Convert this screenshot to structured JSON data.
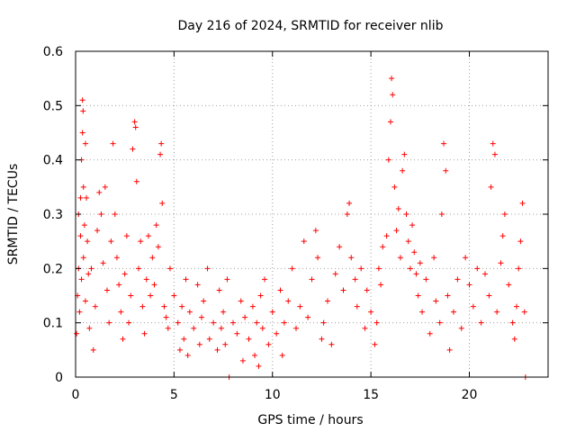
{
  "chart_data": {
    "type": "scatter",
    "title": "Day 216 of 2024, SRMTID for receiver nlib",
    "xlabel": "GPS time / hours",
    "ylabel": "SRMTID / TECUs",
    "xlim": [
      0,
      24
    ],
    "ylim": [
      0,
      0.6
    ],
    "x_ticks": [
      0,
      5,
      10,
      15,
      20
    ],
    "x_tick_labels": [
      "0",
      "5",
      "10",
      "15",
      "20"
    ],
    "y_ticks": [
      0,
      0.1,
      0.2,
      0.3,
      0.4,
      0.5,
      0.6
    ],
    "y_tick_labels": [
      "0",
      "0.1",
      "0.2",
      "0.3",
      "0.4",
      "0.5",
      "0.6"
    ],
    "grid": true,
    "marker": "+",
    "series": [
      {
        "name": "SRMTID",
        "color": "#ff0000",
        "points": [
          [
            0.05,
            0.08
          ],
          [
            0.1,
            0.15
          ],
          [
            0.15,
            0.2
          ],
          [
            0.15,
            0.3
          ],
          [
            0.2,
            0.12
          ],
          [
            0.25,
            0.26
          ],
          [
            0.25,
            0.33
          ],
          [
            0.3,
            0.18
          ],
          [
            0.3,
            0.4
          ],
          [
            0.35,
            0.45
          ],
          [
            0.35,
            0.51
          ],
          [
            0.38,
            0.49
          ],
          [
            0.4,
            0.35
          ],
          [
            0.4,
            0.22
          ],
          [
            0.45,
            0.28
          ],
          [
            0.5,
            0.43
          ],
          [
            0.5,
            0.14
          ],
          [
            0.55,
            0.33
          ],
          [
            0.6,
            0.25
          ],
          [
            0.65,
            0.19
          ],
          [
            0.7,
            0.09
          ],
          [
            0.8,
            0.2
          ],
          [
            0.9,
            0.05
          ],
          [
            1.0,
            0.13
          ],
          [
            1.1,
            0.27
          ],
          [
            1.2,
            0.34
          ],
          [
            1.3,
            0.3
          ],
          [
            1.4,
            0.21
          ],
          [
            1.5,
            0.35
          ],
          [
            1.6,
            0.16
          ],
          [
            1.7,
            0.1
          ],
          [
            1.8,
            0.25
          ],
          [
            1.9,
            0.43
          ],
          [
            2.0,
            0.3
          ],
          [
            2.1,
            0.22
          ],
          [
            2.2,
            0.17
          ],
          [
            2.3,
            0.12
          ],
          [
            2.4,
            0.07
          ],
          [
            2.5,
            0.19
          ],
          [
            2.6,
            0.26
          ],
          [
            2.7,
            0.1
          ],
          [
            2.8,
            0.15
          ],
          [
            2.9,
            0.42
          ],
          [
            3.0,
            0.47
          ],
          [
            3.05,
            0.46
          ],
          [
            3.1,
            0.36
          ],
          [
            3.2,
            0.2
          ],
          [
            3.3,
            0.25
          ],
          [
            3.4,
            0.13
          ],
          [
            3.5,
            0.08
          ],
          [
            3.6,
            0.18
          ],
          [
            3.7,
            0.26
          ],
          [
            3.8,
            0.15
          ],
          [
            3.9,
            0.22
          ],
          [
            4.0,
            0.17
          ],
          [
            4.1,
            0.28
          ],
          [
            4.2,
            0.24
          ],
          [
            4.3,
            0.41
          ],
          [
            4.35,
            0.43
          ],
          [
            4.4,
            0.32
          ],
          [
            4.5,
            0.13
          ],
          [
            4.6,
            0.11
          ],
          [
            4.7,
            0.09
          ],
          [
            4.8,
            0.2
          ],
          [
            5.0,
            0.15
          ],
          [
            5.2,
            0.1
          ],
          [
            5.3,
            0.05
          ],
          [
            5.4,
            0.13
          ],
          [
            5.5,
            0.07
          ],
          [
            5.6,
            0.18
          ],
          [
            5.7,
            0.04
          ],
          [
            5.8,
            0.12
          ],
          [
            6.0,
            0.09
          ],
          [
            6.2,
            0.17
          ],
          [
            6.3,
            0.06
          ],
          [
            6.4,
            0.11
          ],
          [
            6.5,
            0.14
          ],
          [
            6.7,
            0.2
          ],
          [
            6.8,
            0.07
          ],
          [
            7.0,
            0.1
          ],
          [
            7.2,
            0.05
          ],
          [
            7.3,
            0.16
          ],
          [
            7.4,
            0.09
          ],
          [
            7.5,
            0.12
          ],
          [
            7.6,
            0.06
          ],
          [
            7.7,
            0.18
          ],
          [
            7.8,
            0.0
          ],
          [
            8.0,
            0.1
          ],
          [
            8.2,
            0.08
          ],
          [
            8.4,
            0.14
          ],
          [
            8.5,
            0.03
          ],
          [
            8.6,
            0.11
          ],
          [
            8.8,
            0.07
          ],
          [
            9.0,
            0.13
          ],
          [
            9.1,
            0.04
          ],
          [
            9.2,
            0.1
          ],
          [
            9.3,
            0.02
          ],
          [
            9.4,
            0.15
          ],
          [
            9.5,
            0.09
          ],
          [
            9.6,
            0.18
          ],
          [
            9.8,
            0.06
          ],
          [
            10.0,
            0.12
          ],
          [
            10.2,
            0.08
          ],
          [
            10.4,
            0.16
          ],
          [
            10.5,
            0.04
          ],
          [
            10.6,
            0.1
          ],
          [
            10.8,
            0.14
          ],
          [
            11.0,
            0.2
          ],
          [
            11.2,
            0.09
          ],
          [
            11.4,
            0.13
          ],
          [
            11.6,
            0.25
          ],
          [
            11.8,
            0.11
          ],
          [
            12.0,
            0.18
          ],
          [
            12.2,
            0.27
          ],
          [
            12.3,
            0.22
          ],
          [
            12.5,
            0.07
          ],
          [
            12.6,
            0.1
          ],
          [
            12.8,
            0.14
          ],
          [
            13.0,
            0.06
          ],
          [
            13.2,
            0.19
          ],
          [
            13.4,
            0.24
          ],
          [
            13.6,
            0.16
          ],
          [
            13.8,
            0.3
          ],
          [
            13.9,
            0.32
          ],
          [
            14.0,
            0.22
          ],
          [
            14.2,
            0.18
          ],
          [
            14.3,
            0.13
          ],
          [
            14.5,
            0.2
          ],
          [
            14.7,
            0.09
          ],
          [
            14.8,
            0.16
          ],
          [
            15.0,
            0.12
          ],
          [
            15.2,
            0.06
          ],
          [
            15.3,
            0.1
          ],
          [
            15.4,
            0.2
          ],
          [
            15.5,
            0.17
          ],
          [
            15.6,
            0.24
          ],
          [
            15.8,
            0.26
          ],
          [
            15.9,
            0.4
          ],
          [
            16.0,
            0.47
          ],
          [
            16.05,
            0.55
          ],
          [
            16.1,
            0.52
          ],
          [
            16.2,
            0.35
          ],
          [
            16.3,
            0.27
          ],
          [
            16.4,
            0.31
          ],
          [
            16.5,
            0.22
          ],
          [
            16.6,
            0.38
          ],
          [
            16.7,
            0.41
          ],
          [
            16.8,
            0.3
          ],
          [
            16.9,
            0.25
          ],
          [
            17.0,
            0.2
          ],
          [
            17.1,
            0.28
          ],
          [
            17.2,
            0.23
          ],
          [
            17.3,
            0.19
          ],
          [
            17.4,
            0.15
          ],
          [
            17.5,
            0.21
          ],
          [
            17.6,
            0.12
          ],
          [
            17.8,
            0.18
          ],
          [
            18.0,
            0.08
          ],
          [
            18.2,
            0.22
          ],
          [
            18.3,
            0.14
          ],
          [
            18.5,
            0.1
          ],
          [
            18.6,
            0.3
          ],
          [
            18.7,
            0.43
          ],
          [
            18.8,
            0.38
          ],
          [
            18.9,
            0.15
          ],
          [
            19.0,
            0.05
          ],
          [
            19.2,
            0.12
          ],
          [
            19.4,
            0.18
          ],
          [
            19.6,
            0.09
          ],
          [
            19.8,
            0.22
          ],
          [
            20.0,
            0.17
          ],
          [
            20.2,
            0.13
          ],
          [
            20.4,
            0.2
          ],
          [
            20.6,
            0.1
          ],
          [
            20.8,
            0.19
          ],
          [
            21.0,
            0.15
          ],
          [
            21.1,
            0.35
          ],
          [
            21.2,
            0.43
          ],
          [
            21.3,
            0.41
          ],
          [
            21.4,
            0.12
          ],
          [
            21.6,
            0.21
          ],
          [
            21.7,
            0.26
          ],
          [
            21.8,
            0.3
          ],
          [
            22.0,
            0.17
          ],
          [
            22.2,
            0.1
          ],
          [
            22.3,
            0.07
          ],
          [
            22.4,
            0.13
          ],
          [
            22.5,
            0.2
          ],
          [
            22.6,
            0.25
          ],
          [
            22.7,
            0.32
          ],
          [
            22.8,
            0.12
          ],
          [
            22.85,
            0.0
          ]
        ]
      }
    ]
  }
}
